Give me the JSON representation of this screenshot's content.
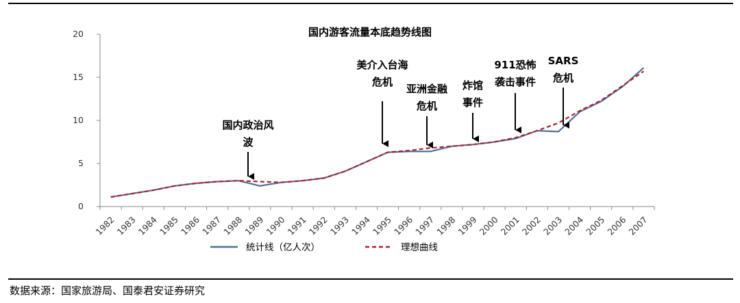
{
  "source": "数据来源：国家旅游局、国泰君安证券研究",
  "chart_data": {
    "type": "line",
    "title": "国内游客流量本底趋势线图",
    "xlabel": "",
    "ylabel": "",
    "ylim": [
      0,
      20
    ],
    "yticks": [
      "0",
      "5",
      "10",
      "15",
      "20"
    ],
    "grid": false,
    "legend_position": "bottom",
    "x": [
      "1982",
      "1983",
      "1984",
      "1985",
      "1986",
      "1987",
      "1988",
      "1989",
      "1990",
      "1991",
      "1992",
      "1993",
      "1994",
      "1995",
      "1996",
      "1997",
      "1998",
      "1999",
      "2000",
      "2001",
      "2002",
      "2003",
      "2004",
      "2005",
      "2006",
      "2007"
    ],
    "series": [
      {
        "name": "统计线（亿人次）",
        "color": "#4a6f96",
        "style": "solid",
        "values": [
          1.1,
          1.5,
          1.9,
          2.4,
          2.7,
          2.9,
          3.0,
          2.4,
          2.8,
          3.0,
          3.3,
          4.1,
          5.2,
          6.3,
          6.4,
          6.4,
          7.0,
          7.2,
          7.5,
          7.9,
          8.8,
          8.7,
          11.0,
          12.2,
          13.9,
          16.1
        ]
      },
      {
        "name": "理想曲线",
        "color": "#b11e2b",
        "style": "dashed",
        "values": [
          1.1,
          1.5,
          1.9,
          2.4,
          2.7,
          2.9,
          3.0,
          2.9,
          2.8,
          3.0,
          3.3,
          4.1,
          5.2,
          6.3,
          6.5,
          6.8,
          7.0,
          7.2,
          7.5,
          8.0,
          8.8,
          9.7,
          11.1,
          12.3,
          14.0,
          15.7
        ]
      }
    ],
    "annotations": [
      {
        "lines": [
          "国内政治风",
          "波"
        ],
        "year": "1989"
      },
      {
        "lines": [
          "美介入台海",
          "危机"
        ],
        "year": "1995"
      },
      {
        "lines": [
          "亚洲金融",
          "危机"
        ],
        "year": "1997"
      },
      {
        "lines": [
          "炸馆",
          "事件"
        ],
        "year": "1999"
      },
      {
        "lines": [
          "911恐怖",
          "袭击事件"
        ],
        "year": "2001"
      },
      {
        "lines": [
          "SARS",
          "危机"
        ],
        "year": "2003"
      }
    ]
  }
}
